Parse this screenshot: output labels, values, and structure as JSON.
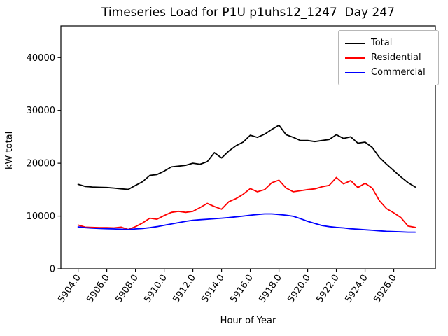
{
  "title": "Timeseries Load for P1U p1uhs12_1247  Day 247",
  "chart_data": {
    "type": "line",
    "title": "Timeseries Load for P1U p1uhs12_1247  Day 247",
    "xlabel": "Hour of Year",
    "ylabel": "kW total",
    "xlim": [
      5902.8,
      5928.9
    ],
    "ylim": [
      0,
      46000
    ],
    "grid": false,
    "legend_position": "upper right",
    "xtick_values": [
      5904,
      5906,
      5908,
      5910,
      5912,
      5914,
      5916,
      5918,
      5920,
      5922,
      5924,
      5926
    ],
    "xtick_labels": [
      "5904.0",
      "5906.0",
      "5908.0",
      "5910.0",
      "5912.0",
      "5914.0",
      "5916.0",
      "5918.0",
      "5920.0",
      "5922.0",
      "5924.0",
      "5926.0"
    ],
    "ytick_values": [
      0,
      10000,
      20000,
      30000,
      40000
    ],
    "ytick_labels": [
      "0",
      "10000",
      "20000",
      "30000",
      "40000"
    ],
    "x": [
      5904.0,
      5904.5,
      5905.0,
      5905.5,
      5906.0,
      5906.5,
      5907.0,
      5907.5,
      5908.0,
      5908.5,
      5909.0,
      5909.5,
      5910.0,
      5910.5,
      5911.0,
      5911.5,
      5912.0,
      5912.5,
      5913.0,
      5913.5,
      5914.0,
      5914.5,
      5915.0,
      5915.5,
      5916.0,
      5916.5,
      5917.0,
      5917.5,
      5918.0,
      5918.5,
      5919.0,
      5919.5,
      5920.0,
      5920.5,
      5921.0,
      5921.5,
      5922.0,
      5922.5,
      5923.0,
      5923.5,
      5924.0,
      5924.5,
      5925.0,
      5925.5,
      5926.0,
      5926.5,
      5927.0,
      5927.5
    ],
    "series": [
      {
        "name": "Total",
        "color": "#000000",
        "values": [
          16000,
          15600,
          15500,
          15450,
          15400,
          15300,
          15150,
          15050,
          15800,
          16500,
          17700,
          17850,
          18500,
          19300,
          19450,
          19600,
          20000,
          19800,
          20300,
          22000,
          21000,
          22300,
          23300,
          24000,
          25300,
          24900,
          25500,
          26400,
          27200,
          25400,
          24900,
          24300,
          24300,
          24100,
          24300,
          24500,
          25400,
          24700,
          25000,
          23800,
          24000,
          23000,
          21100,
          19800,
          18600,
          17400,
          16300,
          15500
        ]
      },
      {
        "name": "Residential",
        "color": "#ff0000",
        "values": [
          8300,
          7900,
          7850,
          7800,
          7800,
          7750,
          7900,
          7450,
          8000,
          8700,
          9600,
          9400,
          10100,
          10700,
          10900,
          10700,
          10900,
          11600,
          12400,
          11800,
          11300,
          12700,
          13300,
          14100,
          15200,
          14600,
          15000,
          16300,
          16800,
          15300,
          14600,
          14800,
          15000,
          15150,
          15550,
          15800,
          17300,
          16100,
          16700,
          15400,
          16200,
          15300,
          12900,
          11400,
          10600,
          9700,
          8100,
          7850
        ]
      },
      {
        "name": "Commercial",
        "color": "#0000ff",
        "values": [
          7950,
          7800,
          7700,
          7650,
          7600,
          7550,
          7500,
          7450,
          7550,
          7650,
          7800,
          8000,
          8250,
          8500,
          8750,
          9000,
          9200,
          9300,
          9400,
          9500,
          9600,
          9700,
          9850,
          10000,
          10150,
          10300,
          10400,
          10400,
          10300,
          10150,
          9950,
          9500,
          9000,
          8600,
          8200,
          8000,
          7850,
          7750,
          7600,
          7500,
          7400,
          7300,
          7200,
          7100,
          7050,
          7000,
          6950,
          6950
        ]
      }
    ]
  }
}
